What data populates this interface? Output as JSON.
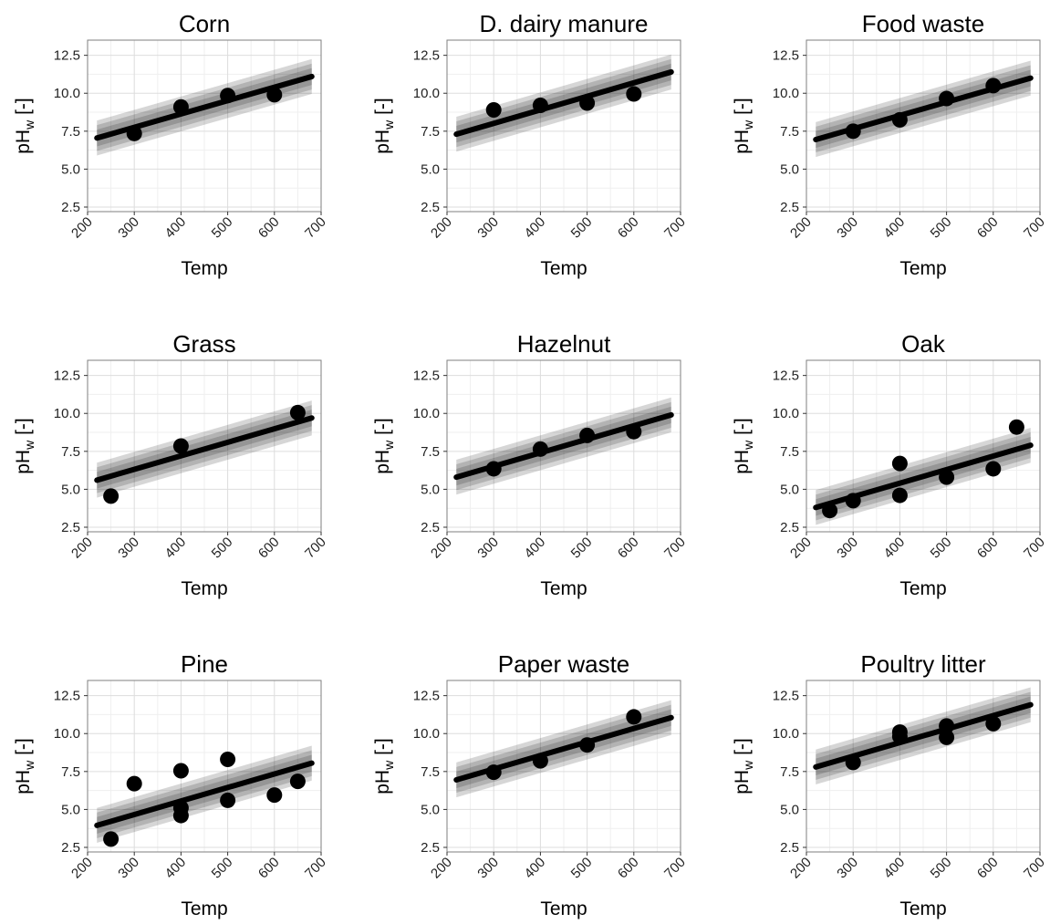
{
  "chart_data": [
    {
      "type": "scatter",
      "title": "Corn",
      "xlabel": "Temp",
      "ylabel": "pHw [-]",
      "xlim": [
        200,
        700
      ],
      "ylim": [
        2.2,
        13.5
      ],
      "xticks": [
        "200",
        "300",
        "400",
        "500",
        "600",
        "700"
      ],
      "yticks": [
        "2.5",
        "5.0",
        "7.5",
        "10.0",
        "12.5"
      ],
      "points": [
        {
          "x": 300,
          "y": 7.35
        },
        {
          "x": 400,
          "y": 9.1
        },
        {
          "x": 500,
          "y": 9.85
        },
        {
          "x": 600,
          "y": 9.9
        }
      ],
      "fit_line": {
        "x": [
          220,
          680
        ],
        "y": [
          7.05,
          11.1
        ]
      },
      "band_halfwidths": [
        0.55,
        0.85,
        1.15
      ]
    },
    {
      "type": "scatter",
      "title": "D. dairy manure",
      "xlabel": "Temp",
      "ylabel": "pHw [-]",
      "xlim": [
        200,
        700
      ],
      "ylim": [
        2.2,
        13.5
      ],
      "xticks": [
        "200",
        "300",
        "400",
        "500",
        "600",
        "700"
      ],
      "yticks": [
        "2.5",
        "5.0",
        "7.5",
        "10.0",
        "12.5"
      ],
      "points": [
        {
          "x": 300,
          "y": 8.9
        },
        {
          "x": 400,
          "y": 9.2
        },
        {
          "x": 500,
          "y": 9.35
        },
        {
          "x": 600,
          "y": 9.95
        }
      ],
      "fit_line": {
        "x": [
          220,
          680
        ],
        "y": [
          7.3,
          11.4
        ]
      },
      "band_halfwidths": [
        0.55,
        0.85,
        1.15
      ]
    },
    {
      "type": "scatter",
      "title": "Food waste",
      "xlabel": "Temp",
      "ylabel": "pHw [-]",
      "xlim": [
        200,
        700
      ],
      "ylim": [
        2.2,
        13.5
      ],
      "xticks": [
        "200",
        "300",
        "400",
        "500",
        "600",
        "700"
      ],
      "yticks": [
        "2.5",
        "5.0",
        "7.5",
        "10.0",
        "12.5"
      ],
      "points": [
        {
          "x": 300,
          "y": 7.5
        },
        {
          "x": 400,
          "y": 8.25
        },
        {
          "x": 500,
          "y": 9.65
        },
        {
          "x": 600,
          "y": 10.5
        }
      ],
      "fit_line": {
        "x": [
          220,
          680
        ],
        "y": [
          6.95,
          11.0
        ]
      },
      "band_halfwidths": [
        0.55,
        0.85,
        1.15
      ]
    },
    {
      "type": "scatter",
      "title": "Grass",
      "xlabel": "Temp",
      "ylabel": "pHw [-]",
      "xlim": [
        200,
        700
      ],
      "ylim": [
        2.2,
        13.5
      ],
      "xticks": [
        "200",
        "300",
        "400",
        "500",
        "600",
        "700"
      ],
      "yticks": [
        "2.5",
        "5.0",
        "7.5",
        "10.0",
        "12.5"
      ],
      "points": [
        {
          "x": 250,
          "y": 4.55
        },
        {
          "x": 400,
          "y": 7.85
        },
        {
          "x": 650,
          "y": 10.05
        }
      ],
      "fit_line": {
        "x": [
          220,
          680
        ],
        "y": [
          5.6,
          9.7
        ]
      },
      "band_halfwidths": [
        0.55,
        0.85,
        1.15
      ]
    },
    {
      "type": "scatter",
      "title": "Hazelnut",
      "xlabel": "Temp",
      "ylabel": "pHw [-]",
      "xlim": [
        200,
        700
      ],
      "ylim": [
        2.2,
        13.5
      ],
      "xticks": [
        "200",
        "300",
        "400",
        "500",
        "600",
        "700"
      ],
      "yticks": [
        "2.5",
        "5.0",
        "7.5",
        "10.0",
        "12.5"
      ],
      "points": [
        {
          "x": 300,
          "y": 6.35
        },
        {
          "x": 400,
          "y": 7.65
        },
        {
          "x": 500,
          "y": 8.55
        },
        {
          "x": 600,
          "y": 8.8
        }
      ],
      "fit_line": {
        "x": [
          220,
          680
        ],
        "y": [
          5.8,
          9.9
        ]
      },
      "band_halfwidths": [
        0.55,
        0.85,
        1.15
      ]
    },
    {
      "type": "scatter",
      "title": "Oak",
      "xlabel": "Temp",
      "ylabel": "pHw [-]",
      "xlim": [
        200,
        700
      ],
      "ylim": [
        2.2,
        13.5
      ],
      "xticks": [
        "200",
        "300",
        "400",
        "500",
        "600",
        "700"
      ],
      "yticks": [
        "2.5",
        "5.0",
        "7.5",
        "10.0",
        "12.5"
      ],
      "points": [
        {
          "x": 250,
          "y": 3.6
        },
        {
          "x": 300,
          "y": 4.25
        },
        {
          "x": 400,
          "y": 6.7
        },
        {
          "x": 400,
          "y": 4.6
        },
        {
          "x": 500,
          "y": 5.8
        },
        {
          "x": 600,
          "y": 6.35
        },
        {
          "x": 650,
          "y": 9.1
        }
      ],
      "fit_line": {
        "x": [
          220,
          680
        ],
        "y": [
          3.8,
          7.9
        ]
      },
      "band_halfwidths": [
        0.55,
        0.85,
        1.15
      ]
    },
    {
      "type": "scatter",
      "title": "Pine",
      "xlabel": "Temp",
      "ylabel": "pHw [-]",
      "xlim": [
        200,
        700
      ],
      "ylim": [
        2.2,
        13.5
      ],
      "xticks": [
        "200",
        "300",
        "400",
        "500",
        "600",
        "700"
      ],
      "yticks": [
        "2.5",
        "5.0",
        "7.5",
        "10.0",
        "12.5"
      ],
      "points": [
        {
          "x": 250,
          "y": 3.05
        },
        {
          "x": 300,
          "y": 6.7
        },
        {
          "x": 400,
          "y": 7.55
        },
        {
          "x": 400,
          "y": 5.1
        },
        {
          "x": 400,
          "y": 4.6
        },
        {
          "x": 500,
          "y": 8.3
        },
        {
          "x": 500,
          "y": 5.6
        },
        {
          "x": 600,
          "y": 5.95
        },
        {
          "x": 650,
          "y": 6.85
        }
      ],
      "fit_line": {
        "x": [
          220,
          680
        ],
        "y": [
          3.95,
          8.05
        ]
      },
      "band_halfwidths": [
        0.55,
        0.85,
        1.15
      ]
    },
    {
      "type": "scatter",
      "title": "Paper waste",
      "xlabel": "Temp",
      "ylabel": "pHw [-]",
      "xlim": [
        200,
        700
      ],
      "ylim": [
        2.2,
        13.5
      ],
      "xticks": [
        "200",
        "300",
        "400",
        "500",
        "600",
        "700"
      ],
      "yticks": [
        "2.5",
        "5.0",
        "7.5",
        "10.0",
        "12.5"
      ],
      "points": [
        {
          "x": 300,
          "y": 7.45
        },
        {
          "x": 400,
          "y": 8.2
        },
        {
          "x": 500,
          "y": 9.25
        },
        {
          "x": 600,
          "y": 11.1
        }
      ],
      "fit_line": {
        "x": [
          220,
          680
        ],
        "y": [
          6.95,
          11.05
        ]
      },
      "band_halfwidths": [
        0.55,
        0.85,
        1.15
      ]
    },
    {
      "type": "scatter",
      "title": "Poultry litter",
      "xlabel": "Temp",
      "ylabel": "pHw [-]",
      "xlim": [
        200,
        700
      ],
      "ylim": [
        2.2,
        13.5
      ],
      "xticks": [
        "200",
        "300",
        "400",
        "500",
        "600",
        "700"
      ],
      "yticks": [
        "2.5",
        "5.0",
        "7.5",
        "10.0",
        "12.5"
      ],
      "points": [
        {
          "x": 300,
          "y": 8.1
        },
        {
          "x": 400,
          "y": 10.1
        },
        {
          "x": 400,
          "y": 9.8
        },
        {
          "x": 500,
          "y": 10.5
        },
        {
          "x": 500,
          "y": 9.75
        },
        {
          "x": 600,
          "y": 10.65
        }
      ],
      "fit_line": {
        "x": [
          220,
          680
        ],
        "y": [
          7.8,
          11.9
        ]
      },
      "band_halfwidths": [
        0.55,
        0.85,
        1.15
      ]
    }
  ],
  "style": {
    "panel_border": "#7f7f7f",
    "grid_major": "#dddddd",
    "grid_minor": "#efefef",
    "band_color": "#000000",
    "line_color": "#000000",
    "point_color": "#000000"
  }
}
